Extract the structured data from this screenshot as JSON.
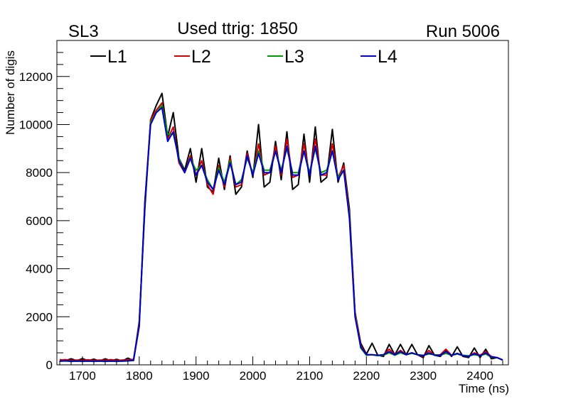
{
  "chart_data": {
    "type": "line",
    "title": "Used ttrig: 1850",
    "left_label": "SL3",
    "right_label": "Run 5006",
    "xlabel": "Time (ns)",
    "ylabel": "Number of digis",
    "xlim": [
      1655,
      2450
    ],
    "ylim": [
      0,
      13500
    ],
    "x_ticks": [
      1700,
      1800,
      1900,
      2000,
      2100,
      2200,
      2300,
      2400
    ],
    "x_tick_labels": [
      "1700",
      "1800",
      "1900",
      "2000",
      "2100",
      "2200",
      "2300",
      "2400"
    ],
    "y_ticks": [
      0,
      2000,
      4000,
      6000,
      8000,
      10000,
      12000
    ],
    "y_tick_labels": [
      "0",
      "2000",
      "4000",
      "6000",
      "8000",
      "10000",
      "12000"
    ],
    "grid": false,
    "legend_position": "top",
    "x": [
      1660,
      1670,
      1680,
      1690,
      1700,
      1710,
      1720,
      1730,
      1740,
      1750,
      1760,
      1770,
      1780,
      1790,
      1800,
      1810,
      1820,
      1830,
      1840,
      1850,
      1860,
      1870,
      1880,
      1890,
      1900,
      1910,
      1920,
      1930,
      1940,
      1950,
      1960,
      1970,
      1980,
      1990,
      2000,
      2010,
      2020,
      2030,
      2040,
      2050,
      2060,
      2070,
      2080,
      2090,
      2100,
      2110,
      2120,
      2130,
      2140,
      2150,
      2160,
      2170,
      2180,
      2190,
      2200,
      2210,
      2220,
      2230,
      2240,
      2250,
      2260,
      2270,
      2280,
      2290,
      2300,
      2310,
      2320,
      2330,
      2340,
      2350,
      2360,
      2370,
      2380,
      2390,
      2400,
      2410,
      2420,
      2430,
      2440
    ],
    "series": [
      {
        "name": "L1",
        "color": "#000000",
        "values": [
          220,
          180,
          250,
          170,
          260,
          170,
          240,
          160,
          250,
          170,
          230,
          160,
          280,
          180,
          1800,
          6500,
          10200,
          10800,
          11300,
          9500,
          10500,
          8600,
          8100,
          9000,
          7600,
          9000,
          7400,
          7200,
          8600,
          7300,
          8700,
          7100,
          7400,
          8900,
          7800,
          10000,
          7400,
          7600,
          9300,
          7700,
          9700,
          7300,
          7500,
          9600,
          7600,
          9900,
          7600,
          7800,
          9800,
          7600,
          8400,
          6500,
          2200,
          900,
          450,
          900,
          400,
          350,
          850,
          420,
          850,
          420,
          850,
          420,
          300,
          800,
          400,
          350,
          600,
          350,
          750,
          350,
          300,
          700,
          300,
          650,
          250,
          300,
          200
        ]
      },
      {
        "name": "L2",
        "color": "#d40000",
        "values": [
          200,
          220,
          180,
          200,
          190,
          210,
          180,
          200,
          190,
          220,
          180,
          200,
          210,
          230,
          1700,
          6800,
          10200,
          10600,
          10900,
          9400,
          9900,
          8400,
          8000,
          8700,
          7900,
          8500,
          7500,
          7100,
          8300,
          7400,
          8600,
          7400,
          7500,
          8800,
          7900,
          9200,
          7900,
          8000,
          9100,
          7900,
          9400,
          7800,
          7900,
          9200,
          7900,
          9400,
          7900,
          7900,
          9200,
          7800,
          8300,
          6300,
          2200,
          800,
          420,
          420,
          380,
          420,
          650,
          420,
          600,
          420,
          500,
          420,
          350,
          600,
          400,
          420,
          650,
          400,
          450,
          380,
          350,
          500,
          400,
          550,
          350,
          300,
          200
        ]
      },
      {
        "name": "L3",
        "color": "#009900",
        "values": [
          150,
          160,
          140,
          150,
          140,
          150,
          140,
          150,
          140,
          150,
          140,
          150,
          160,
          180,
          1600,
          6700,
          10100,
          10500,
          10800,
          9600,
          9600,
          8600,
          8000,
          8600,
          8100,
          8300,
          7700,
          7300,
          8200,
          7600,
          8500,
          7500,
          7700,
          8600,
          8000,
          8900,
          8100,
          8100,
          8900,
          8100,
          9000,
          8000,
          8000,
          8900,
          8000,
          9000,
          8000,
          8100,
          8900,
          7800,
          8100,
          6200,
          2100,
          700,
          400,
          420,
          380,
          400,
          500,
          400,
          500,
          420,
          480,
          420,
          400,
          450,
          420,
          400,
          480,
          400,
          450,
          400,
          380,
          420,
          380,
          450,
          320,
          300,
          200
        ]
      },
      {
        "name": "L4",
        "color": "#0000cc",
        "values": [
          150,
          170,
          150,
          160,
          150,
          160,
          150,
          160,
          150,
          160,
          150,
          160,
          170,
          190,
          1600,
          6800,
          10000,
          10500,
          10700,
          9300,
          9700,
          8500,
          8000,
          8600,
          7900,
          8300,
          7600,
          7300,
          8100,
          7500,
          8400,
          7500,
          7600,
          8700,
          7900,
          8800,
          8000,
          8000,
          8900,
          8000,
          9100,
          7900,
          7900,
          8900,
          7900,
          9100,
          7900,
          8000,
          8900,
          7700,
          8100,
          6100,
          2000,
          750,
          420,
          420,
          400,
          420,
          550,
          420,
          550,
          420,
          500,
          420,
          380,
          500,
          400,
          400,
          550,
          400,
          480,
          380,
          350,
          460,
          380,
          500,
          330,
          300,
          200
        ]
      }
    ]
  }
}
